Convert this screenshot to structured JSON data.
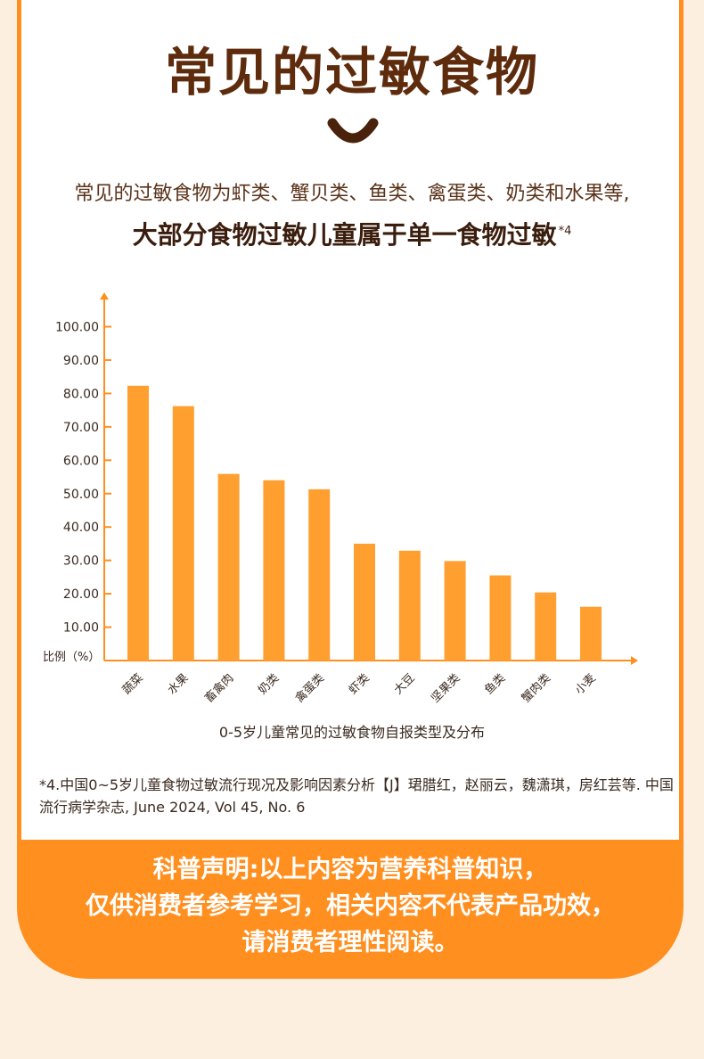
{
  "title": "常见的过敏食物",
  "intro_text": "常见的过敏食物为虾类、蟹贝类、鱼类、禽蛋类、奶类和水果等,",
  "headline": "大部分食物过敏儿童属于单一食物过敏",
  "headline_ref": "*4",
  "colors": {
    "accent": "#ff8f1f",
    "bar": "#ff9f2f",
    "title": "#5e2c0d",
    "background": "#fdefdf"
  },
  "chart_data": {
    "type": "bar",
    "categories": [
      "蔬菜",
      "水果",
      "畜禽肉",
      "奶类",
      "禽蛋类",
      "虾类",
      "大豆",
      "坚果类",
      "鱼类",
      "蟹肉类",
      "小麦"
    ],
    "values": [
      82.3,
      76.2,
      55.9,
      54.0,
      51.3,
      35.0,
      32.9,
      29.8,
      25.5,
      20.4,
      16.1
    ],
    "ylabel": "比例（%）",
    "yticks": [
      "10.00",
      "20.00",
      "30.00",
      "40.00",
      "50.00",
      "60.00",
      "70.00",
      "80.00",
      "90.00",
      "100.00"
    ],
    "ylim": [
      0,
      100
    ],
    "caption": "0-5岁儿童常见的过敏食物自报类型及分布",
    "grid": false
  },
  "reference": "*4.中国0~5岁儿童食物过敏流行现况及影响因素分析【J】珺腊红，赵丽云，魏潇琪，房红芸等. 中国流行病学杂志, June 2024, Vol 45, No. 6",
  "disclaimer": [
    "科普声明:以上内容为营养科普知识，",
    "仅供消费者参考学习，相关内容不代表产品功效，",
    "请消费者理性阅读。"
  ]
}
